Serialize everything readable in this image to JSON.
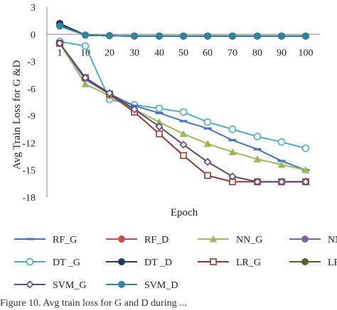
{
  "chart_data": {
    "type": "line",
    "title": "",
    "xlabel": "Epoch",
    "ylabel": "Avg Train Loss for G &D",
    "x": [
      1,
      10,
      20,
      30,
      40,
      50,
      60,
      70,
      80,
      90,
      100
    ],
    "x_tick_labels": [
      "1",
      "10",
      "20",
      "30",
      "40",
      "50",
      "60",
      "70",
      "80",
      "90",
      "100"
    ],
    "ylim": [
      -18,
      3
    ],
    "y_ticks": [
      3,
      0,
      -3,
      -6,
      -9,
      -12,
      -15,
      -18
    ],
    "grid": false,
    "legend_position": "bottom",
    "series": [
      {
        "name": "RF_G",
        "color": "#4472c4",
        "marker": "dash",
        "values": [
          -1.0,
          -5.0,
          -6.6,
          -7.9,
          -8.7,
          -9.6,
          -10.4,
          -11.7,
          -12.7,
          -14.0,
          -15.0
        ]
      },
      {
        "name": "RF_D",
        "color": "#c0504d",
        "marker": "circle-filled",
        "values": [
          1.1,
          -0.1,
          -0.15,
          -0.2,
          -0.2,
          -0.2,
          -0.2,
          -0.2,
          -0.2,
          -0.2,
          -0.2
        ]
      },
      {
        "name": "NN_G",
        "color": "#9bbb59",
        "marker": "triangle-filled",
        "values": [
          -1.0,
          -5.5,
          -6.8,
          -8.3,
          -9.7,
          -11.0,
          -12.1,
          -13.0,
          -13.8,
          -14.4,
          -15.0
        ]
      },
      {
        "name": "NN_D",
        "color": "#8064a2",
        "marker": "circle-filled",
        "values": [
          1.1,
          -0.1,
          -0.15,
          -0.2,
          -0.2,
          -0.2,
          -0.2,
          -0.2,
          -0.2,
          -0.2,
          -0.2
        ]
      },
      {
        "name": "DT _G",
        "color": "#4bacc6",
        "marker": "circle-open",
        "values": [
          -0.8,
          -1.3,
          -7.2,
          -7.8,
          -8.2,
          -8.6,
          -9.7,
          -10.5,
          -11.3,
          -11.9,
          -12.6
        ]
      },
      {
        "name": "DT _D",
        "color": "#1f3864",
        "marker": "circle-filled",
        "values": [
          1.2,
          -0.1,
          -0.15,
          -0.2,
          -0.2,
          -0.2,
          -0.2,
          -0.2,
          -0.2,
          -0.2,
          -0.2
        ]
      },
      {
        "name": "LR_G",
        "color": "#943634",
        "marker": "square-open",
        "values": [
          -1.0,
          -4.8,
          -6.6,
          -8.6,
          -11.0,
          -13.4,
          -15.6,
          -16.3,
          -16.3,
          -16.3,
          -16.3
        ]
      },
      {
        "name": "LR_D",
        "color": "#4f6228",
        "marker": "circle-filled",
        "values": [
          1.0,
          -0.1,
          -0.15,
          -0.2,
          -0.2,
          -0.2,
          -0.2,
          -0.2,
          -0.2,
          -0.2,
          -0.2
        ]
      },
      {
        "name": "SVM_G",
        "color": "#5f497a",
        "marker": "diamond-open",
        "values": [
          -1.0,
          -4.8,
          -6.5,
          -8.3,
          -10.2,
          -12.2,
          -14.1,
          -15.7,
          -16.3,
          -16.3,
          -16.3
        ]
      },
      {
        "name": "SVM_D",
        "color": "#31849b",
        "marker": "circle-filled",
        "values": [
          0.9,
          -0.1,
          -0.15,
          -0.2,
          -0.2,
          -0.2,
          -0.2,
          -0.2,
          -0.2,
          -0.2,
          -0.2
        ]
      }
    ],
    "legend_order": [
      0,
      1,
      2,
      3,
      4,
      5,
      6,
      7,
      8,
      9
    ]
  },
  "caption": "Figure 10.   Avg train loss for G and D during ..."
}
